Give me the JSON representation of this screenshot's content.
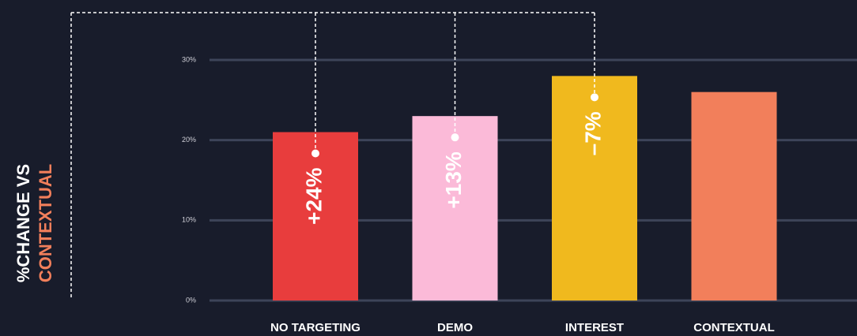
{
  "chart_data": {
    "type": "bar",
    "ylabel": [
      "%CHANGE  VS",
      "CONTEXTUAL"
    ],
    "categories": [
      "NO TARGETING",
      "DEMO",
      "INTEREST",
      "CONTEXTUAL"
    ],
    "values": [
      21,
      23,
      28,
      26
    ],
    "colors": [
      "#e83d3d",
      "#fbbad8",
      "#f0b91e",
      "#f27f5b"
    ],
    "annotations": [
      "+24%",
      "+13%",
      "–7%"
    ],
    "ylim": [
      0,
      30
    ],
    "yticks": [
      {
        "value": 0,
        "label": "0%"
      },
      {
        "value": 10,
        "label": "10%"
      },
      {
        "value": 20,
        "label": "20%"
      },
      {
        "value": 30,
        "label": "30%"
      }
    ],
    "grid": true
  }
}
